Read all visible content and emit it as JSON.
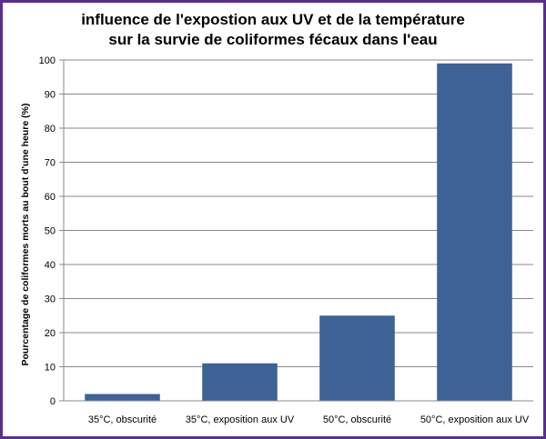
{
  "chart_data": {
    "type": "bar",
    "title": [
      "influence de l'expostion aux UV et de la température",
      "sur la survie de coliformes fécaux dans l'eau"
    ],
    "xlabel": "",
    "ylabel": "Pourcentage de coliformes morts au bout d'une heure (%)",
    "categories": [
      "35°C, obscurité",
      "35°C, exposition aux UV",
      "50°C, obscurité",
      "50°C, exposition aux UV"
    ],
    "values": [
      2,
      11,
      25,
      99
    ],
    "ylim": [
      0,
      100
    ],
    "yticks": [
      0,
      10,
      20,
      30,
      40,
      50,
      60,
      70,
      80,
      90,
      100
    ],
    "grid": true,
    "bar_color": "#3c6296",
    "grid_color": "#888888",
    "frame_color": "#5b2d8e"
  }
}
